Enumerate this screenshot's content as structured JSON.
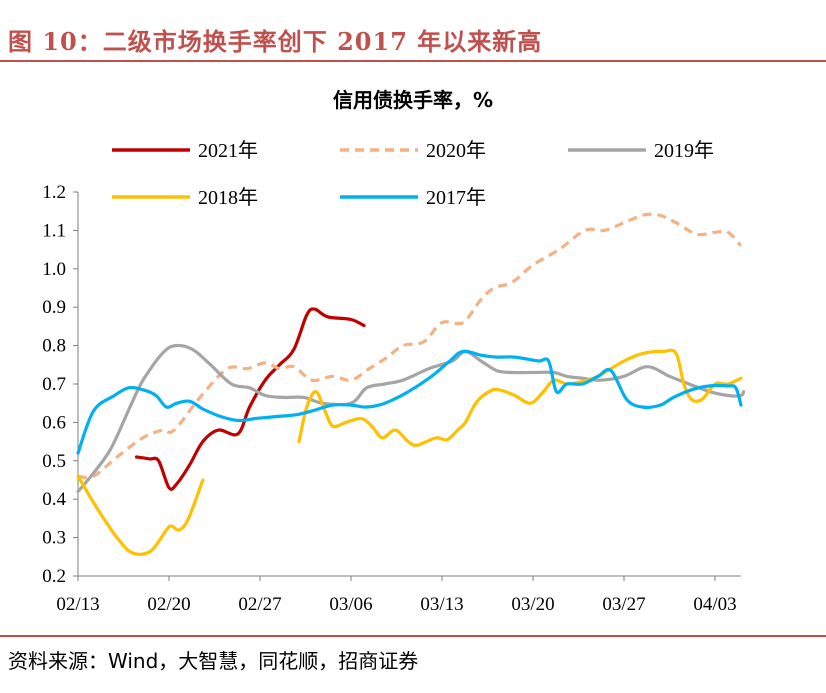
{
  "figure": {
    "title": "图 10：二级市场换手率创下 2017 年以来新高",
    "source": "资料来源：Wind，大智慧，同花顺，招商证券"
  },
  "chart_data": {
    "type": "line",
    "title": "信用债换手率，%",
    "xlabel": "",
    "ylabel": "",
    "x_tick_labels": [
      "02/13",
      "02/20",
      "02/27",
      "03/06",
      "03/13",
      "03/20",
      "03/27",
      "04/03"
    ],
    "x_tick_day_index": [
      0,
      7,
      14,
      21,
      28,
      35,
      42,
      49
    ],
    "x_range_day_index": [
      0,
      51
    ],
    "ylim": [
      0.2,
      1.2
    ],
    "y_ticks": [
      "0.2",
      "0.3",
      "0.4",
      "0.5",
      "0.6",
      "0.7",
      "0.8",
      "0.9",
      "1.0",
      "1.1",
      "1.2"
    ],
    "grid": false,
    "legend_position": "top",
    "series": [
      {
        "name": "2021年",
        "color": "#c00000",
        "dash": "solid",
        "segments": [
          [
            [
              4.5,
              0.51
            ],
            [
              5.5,
              0.505
            ],
            [
              6.2,
              0.5
            ],
            [
              7,
              0.43
            ],
            [
              7.6,
              0.44
            ],
            [
              8.6,
              0.49
            ],
            [
              9.6,
              0.55
            ],
            [
              10.8,
              0.58
            ],
            [
              12.3,
              0.57
            ],
            [
              13.2,
              0.64
            ],
            [
              14.4,
              0.71
            ],
            [
              15.5,
              0.75
            ],
            [
              16.6,
              0.79
            ],
            [
              17.6,
              0.88
            ],
            [
              18.2,
              0.895
            ],
            [
              19.2,
              0.875
            ],
            [
              21,
              0.868
            ],
            [
              22,
              0.852
            ]
          ]
        ]
      },
      {
        "name": "2020年",
        "color": "#f4b183",
        "dash": "dashed",
        "segments": [
          [
            [
              0,
              0.46
            ],
            [
              1.2,
              0.46
            ],
            [
              3,
              0.51
            ],
            [
              5,
              0.56
            ],
            [
              6.5,
              0.58
            ],
            [
              7.4,
              0.58
            ],
            [
              9.5,
              0.67
            ],
            [
              11.5,
              0.74
            ],
            [
              13,
              0.74
            ],
            [
              14.4,
              0.755
            ],
            [
              15.5,
              0.74
            ],
            [
              16.6,
              0.745
            ],
            [
              18,
              0.71
            ],
            [
              19.6,
              0.72
            ],
            [
              21,
              0.71
            ],
            [
              22.4,
              0.74
            ],
            [
              23.8,
              0.77
            ],
            [
              25,
              0.8
            ],
            [
              26.6,
              0.81
            ],
            [
              28,
              0.86
            ],
            [
              29.6,
              0.86
            ],
            [
              31,
              0.92
            ],
            [
              32,
              0.95
            ],
            [
              33.4,
              0.965
            ],
            [
              35,
              1.01
            ],
            [
              37,
              1.05
            ],
            [
              39,
              1.1
            ],
            [
              40.5,
              1.1
            ],
            [
              42,
              1.12
            ],
            [
              43.5,
              1.14
            ],
            [
              44.7,
              1.14
            ],
            [
              46,
              1.12
            ],
            [
              47.6,
              1.09
            ],
            [
              49,
              1.095
            ],
            [
              50,
              1.095
            ],
            [
              51,
              1.06
            ]
          ]
        ]
      },
      {
        "name": "2019年",
        "color": "#a5a5a5",
        "dash": "solid",
        "segments": [
          [
            [
              0,
              0.42
            ],
            [
              1,
              0.46
            ],
            [
              2.5,
              0.53
            ],
            [
              4,
              0.64
            ],
            [
              5,
              0.71
            ],
            [
              6.5,
              0.78
            ],
            [
              7.5,
              0.8
            ],
            [
              8.8,
              0.79
            ],
            [
              10.2,
              0.75
            ],
            [
              11.8,
              0.7
            ],
            [
              13.2,
              0.69
            ],
            [
              14.4,
              0.67
            ],
            [
              15.8,
              0.665
            ],
            [
              17.4,
              0.665
            ],
            [
              18.8,
              0.65
            ],
            [
              21,
              0.65
            ],
            [
              22.2,
              0.69
            ],
            [
              23.6,
              0.7
            ],
            [
              25,
              0.71
            ],
            [
              27,
              0.74
            ],
            [
              28.8,
              0.76
            ],
            [
              29.8,
              0.785
            ],
            [
              31,
              0.76
            ],
            [
              32.2,
              0.735
            ],
            [
              33.4,
              0.73
            ],
            [
              35,
              0.73
            ],
            [
              36.6,
              0.73
            ],
            [
              37.6,
              0.72
            ],
            [
              38.8,
              0.715
            ],
            [
              40.2,
              0.71
            ],
            [
              42,
              0.72
            ],
            [
              43.8,
              0.745
            ],
            [
              45.5,
              0.72
            ],
            [
              47,
              0.7
            ],
            [
              48.6,
              0.68
            ],
            [
              50,
              0.67
            ],
            [
              51,
              0.67
            ],
            [
              51.2,
              0.68
            ]
          ]
        ]
      },
      {
        "name": "2018年",
        "color": "#ffc000",
        "dash": "solid",
        "segments": [
          [
            [
              0,
              0.46
            ],
            [
              1.4,
              0.38
            ],
            [
              3,
              0.3
            ],
            [
              4.2,
              0.26
            ],
            [
              5.6,
              0.265
            ],
            [
              6.8,
              0.32
            ],
            [
              7.2,
              0.33
            ],
            [
              7.8,
              0.32
            ],
            [
              8.5,
              0.35
            ],
            [
              9.6,
              0.45
            ]
          ],
          [
            [
              17,
              0.55
            ],
            [
              17.6,
              0.64
            ],
            [
              18.3,
              0.68
            ],
            [
              19,
              0.63
            ],
            [
              19.6,
              0.59
            ],
            [
              20.6,
              0.6
            ],
            [
              21.8,
              0.61
            ],
            [
              22.6,
              0.59
            ],
            [
              23.4,
              0.56
            ],
            [
              24.4,
              0.58
            ],
            [
              25.4,
              0.55
            ],
            [
              26,
              0.54
            ],
            [
              26.8,
              0.55
            ],
            [
              27.6,
              0.56
            ],
            [
              28.4,
              0.555
            ],
            [
              29.2,
              0.58
            ],
            [
              29.8,
              0.6
            ],
            [
              30.6,
              0.65
            ],
            [
              31.6,
              0.68
            ],
            [
              32.4,
              0.685
            ],
            [
              33.6,
              0.67
            ],
            [
              34.8,
              0.65
            ],
            [
              35.8,
              0.68
            ],
            [
              36.6,
              0.71
            ],
            [
              37.6,
              0.7
            ],
            [
              38.6,
              0.705
            ],
            [
              40,
              0.72
            ],
            [
              42,
              0.76
            ],
            [
              43.5,
              0.78
            ],
            [
              45,
              0.785
            ],
            [
              46,
              0.78
            ],
            [
              46.6,
              0.7
            ],
            [
              47.2,
              0.66
            ],
            [
              48,
              0.66
            ],
            [
              49,
              0.7
            ],
            [
              50,
              0.7
            ],
            [
              51,
              0.715
            ]
          ]
        ]
      },
      {
        "name": "2017年",
        "color": "#00b0f0",
        "dash": "solid",
        "segments": [
          [
            [
              0,
              0.52
            ],
            [
              1.2,
              0.63
            ],
            [
              2.8,
              0.67
            ],
            [
              3.9,
              0.69
            ],
            [
              5,
              0.685
            ],
            [
              6,
              0.67
            ],
            [
              6.8,
              0.64
            ],
            [
              7.6,
              0.65
            ],
            [
              8.6,
              0.655
            ],
            [
              9.6,
              0.635
            ],
            [
              11,
              0.615
            ],
            [
              12.4,
              0.605
            ],
            [
              13.6,
              0.61
            ],
            [
              15.2,
              0.615
            ],
            [
              16.8,
              0.62
            ],
            [
              18,
              0.63
            ],
            [
              19.6,
              0.645
            ],
            [
              21,
              0.645
            ],
            [
              22.2,
              0.64
            ],
            [
              23.6,
              0.65
            ],
            [
              25.4,
              0.68
            ],
            [
              27.2,
              0.72
            ],
            [
              28.6,
              0.76
            ],
            [
              29.6,
              0.785
            ],
            [
              31,
              0.775
            ],
            [
              32.2,
              0.77
            ],
            [
              33.6,
              0.77
            ],
            [
              35.4,
              0.76
            ],
            [
              36.2,
              0.76
            ],
            [
              36.8,
              0.68
            ],
            [
              37.6,
              0.7
            ],
            [
              38.8,
              0.7
            ],
            [
              40,
              0.72
            ],
            [
              41,
              0.735
            ],
            [
              42.2,
              0.66
            ],
            [
              43.4,
              0.64
            ],
            [
              44.8,
              0.645
            ],
            [
              45.8,
              0.665
            ],
            [
              47.2,
              0.685
            ],
            [
              48.6,
              0.695
            ],
            [
              50,
              0.695
            ],
            [
              50.6,
              0.69
            ],
            [
              51,
              0.645
            ]
          ]
        ]
      }
    ]
  }
}
